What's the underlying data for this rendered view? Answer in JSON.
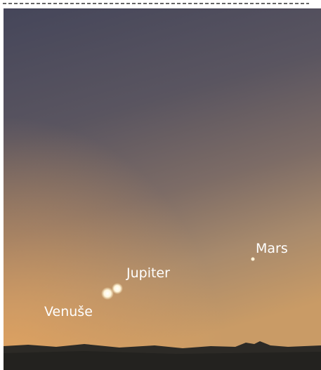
{
  "objects": [
    {
      "label": "Mars"
    },
    {
      "label": "Jupiter"
    },
    {
      "label": "Venuše"
    }
  ]
}
